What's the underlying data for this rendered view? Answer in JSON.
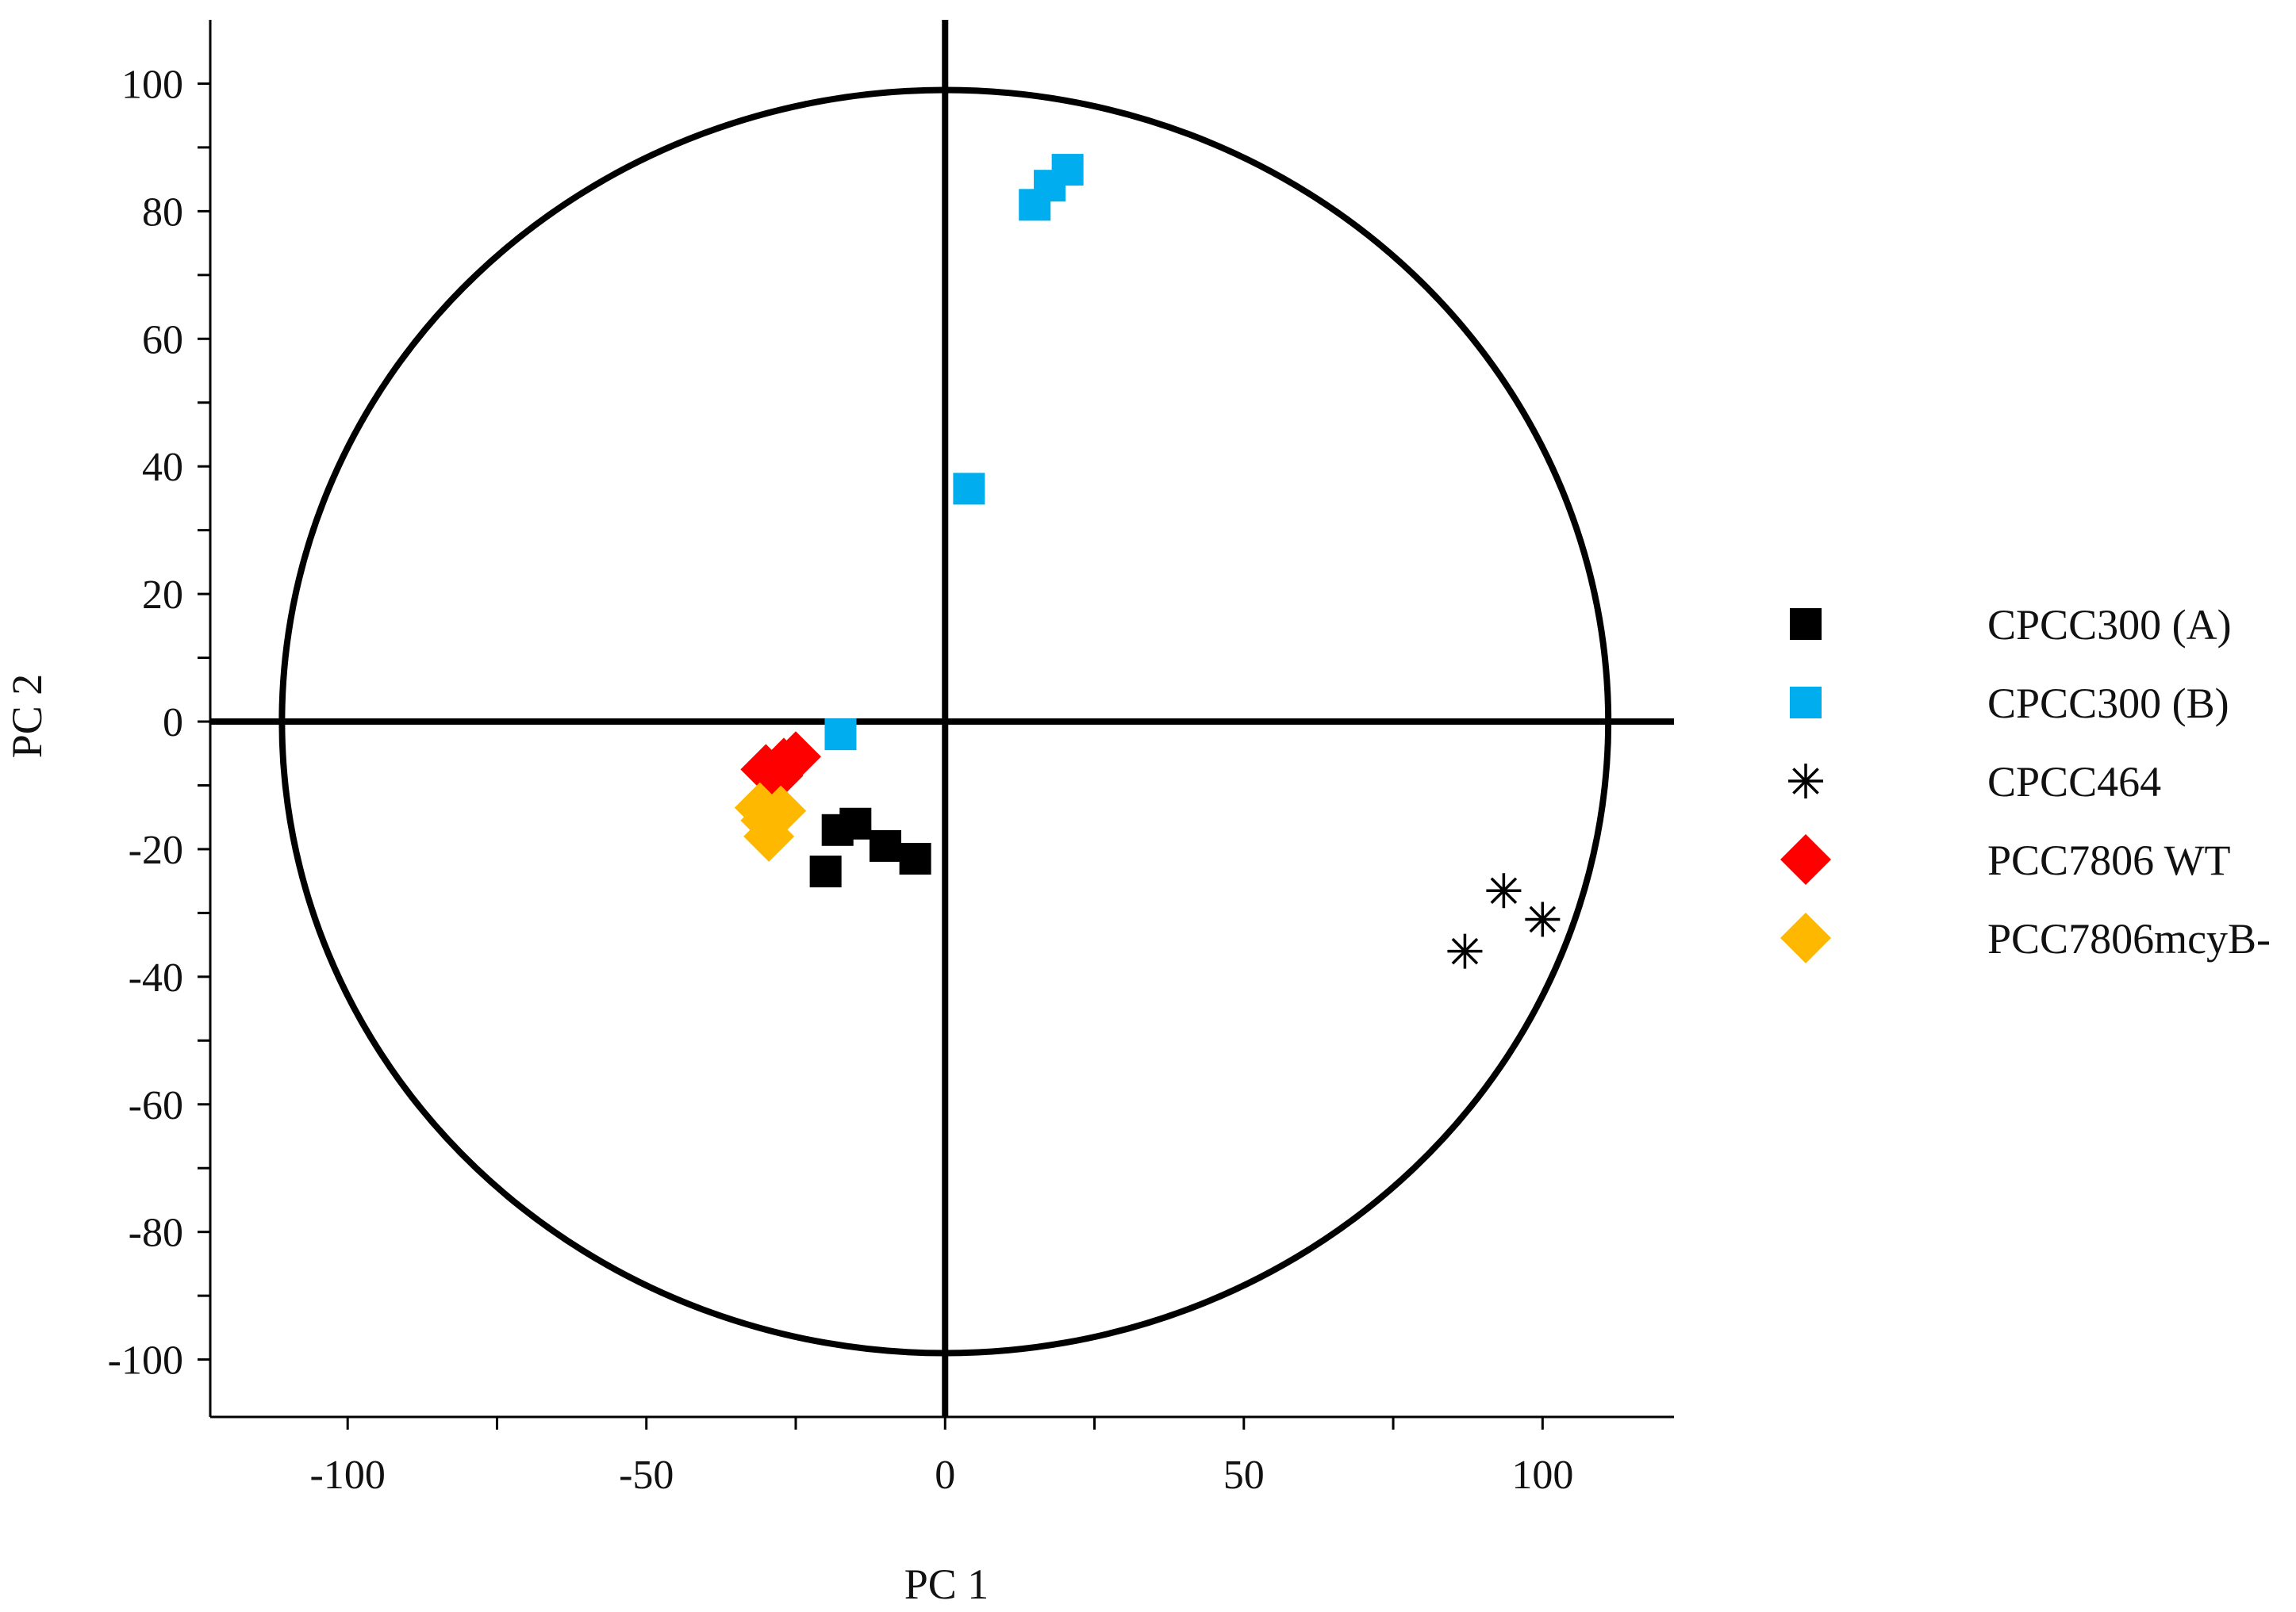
{
  "chart_data": {
    "type": "scatter",
    "title": "",
    "xlabel": "PC 1",
    "ylabel": "PC 2",
    "xlim": [
      -123,
      122
    ],
    "ylim": [
      -109,
      110
    ],
    "x_ticks": [
      -100,
      -50,
      0,
      50,
      100
    ],
    "x_tick_labels": [
      "-100",
      "-50",
      "0",
      "50",
      "100"
    ],
    "x_minor_ticks": [
      -75,
      -25,
      25,
      75
    ],
    "y_ticks": [
      100,
      80,
      60,
      40,
      20,
      0,
      -20,
      -40,
      -60,
      -80,
      -100
    ],
    "y_tick_labels": [
      "100",
      "80",
      "60",
      "40",
      "20",
      "0",
      "-20",
      "-40",
      "-60",
      "-80",
      "-100"
    ],
    "y_minor_ticks": [
      90,
      70,
      50,
      30,
      10,
      -10,
      -30,
      -50,
      -70,
      -90
    ],
    "grid": false,
    "reference_lines": {
      "x": 0,
      "y": 0
    },
    "circle": {
      "cx": 0,
      "cy": 0,
      "rx": 111,
      "ry": 99
    },
    "legend": {
      "position": "right"
    },
    "series": [
      {
        "name": "CPCC300 (A)",
        "marker": "square",
        "color": "#000000",
        "points": [
          [
            -15,
            -16
          ],
          [
            -18,
            -17
          ],
          [
            -10,
            -19.5
          ],
          [
            -5,
            -21.5
          ],
          [
            -20,
            -23.5
          ]
        ]
      },
      {
        "name": "CPCC300 (B)",
        "marker": "square",
        "color": "#00AEEF",
        "points": [
          [
            20.5,
            86.5
          ],
          [
            17.5,
            84
          ],
          [
            15,
            81
          ],
          [
            4,
            36.5
          ],
          [
            -17.5,
            -2
          ]
        ]
      },
      {
        "name": "CPCC464",
        "marker": "asterisk",
        "color": "#000000",
        "points": [
          [
            93.5,
            -26.5
          ],
          [
            100,
            -31
          ],
          [
            87,
            -36
          ]
        ]
      },
      {
        "name": "PCC7806 WT",
        "marker": "diamond",
        "color": "#FF0000",
        "points": [
          [
            -25,
            -5.5
          ],
          [
            -27,
            -6.5
          ],
          [
            -30,
            -7.5
          ],
          [
            -28,
            -8.5
          ]
        ]
      },
      {
        "name": "PCC7806mcyB-",
        "marker": "diamond",
        "color": "#FFB800",
        "points": [
          [
            -31,
            -13.5
          ],
          [
            -27.5,
            -14
          ],
          [
            -30,
            -15.5
          ],
          [
            -29.5,
            -18
          ]
        ]
      }
    ]
  }
}
